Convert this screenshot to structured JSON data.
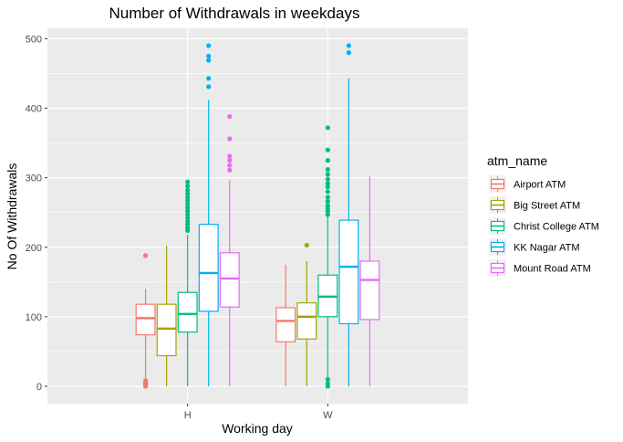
{
  "chart_data": {
    "type": "boxplot",
    "title": "Number of Withdrawals in weekdays",
    "xlabel": "Working day",
    "ylabel": "No Of Withdrawals",
    "categories": [
      "H",
      "W"
    ],
    "ylim": [
      -25,
      515
    ],
    "yticks": [
      0,
      100,
      200,
      300,
      400,
      500
    ],
    "grid": true,
    "legend": {
      "title": "atm_name",
      "position": "right",
      "entries": [
        "Airport ATM",
        "Big Street ATM",
        "Christ College ATM",
        "KK Nagar ATM",
        "Mount Road ATM"
      ]
    },
    "series": [
      {
        "name": "Airport ATM",
        "color": "#F8766D",
        "boxes": [
          {
            "category": "H",
            "min": 0,
            "q1": 74,
            "median": 98,
            "q3": 118,
            "max": 140,
            "outliers": [
              188,
              8,
              5,
              3,
              1,
              0
            ]
          },
          {
            "category": "W",
            "min": 0,
            "q1": 64,
            "median": 94,
            "q3": 113,
            "max": 175,
            "outliers": []
          }
        ]
      },
      {
        "name": "Big Street ATM",
        "color": "#A3A500",
        "boxes": [
          {
            "category": "H",
            "min": 0,
            "q1": 44,
            "median": 83,
            "q3": 118,
            "max": 202,
            "outliers": []
          },
          {
            "category": "W",
            "min": 0,
            "q1": 68,
            "median": 100,
            "q3": 120,
            "max": 180,
            "outliers": [
              203
            ]
          }
        ]
      },
      {
        "name": "Christ College ATM",
        "color": "#00BF7D",
        "boxes": [
          {
            "category": "H",
            "min": 0,
            "q1": 78,
            "median": 104,
            "q3": 135,
            "max": 218,
            "outliers": [
              294,
              288,
              282,
              277,
              272,
              267,
              262,
              257,
              252,
              247,
              242,
              237,
              233,
              228,
              224
            ]
          },
          {
            "category": "W",
            "min": 0,
            "q1": 100,
            "median": 129,
            "q3": 160,
            "max": 245,
            "outliers": [
              372,
              340,
              325,
              312,
              305,
              298,
              292,
              287,
              280,
              272,
              266,
              260,
              256,
              252,
              247,
              10,
              4,
              0
            ]
          }
        ]
      },
      {
        "name": "KK Nagar ATM",
        "color": "#00B0F6",
        "boxes": [
          {
            "category": "H",
            "min": 0,
            "q1": 108,
            "median": 163,
            "q3": 233,
            "max": 412,
            "outliers": [
              490,
              475,
              469,
              443,
              431
            ]
          },
          {
            "category": "W",
            "min": 0,
            "q1": 90,
            "median": 172,
            "q3": 239,
            "max": 443,
            "outliers": [
              490,
              480
            ]
          }
        ]
      },
      {
        "name": "Mount Road ATM",
        "color": "#E76BF3",
        "boxes": [
          {
            "category": "H",
            "min": 0,
            "q1": 114,
            "median": 155,
            "q3": 192,
            "max": 297,
            "outliers": [
              388,
              356,
              331,
              325,
              318,
              311
            ]
          },
          {
            "category": "W",
            "min": 0,
            "q1": 96,
            "median": 153,
            "q3": 180,
            "max": 302,
            "outliers": []
          }
        ]
      }
    ]
  }
}
